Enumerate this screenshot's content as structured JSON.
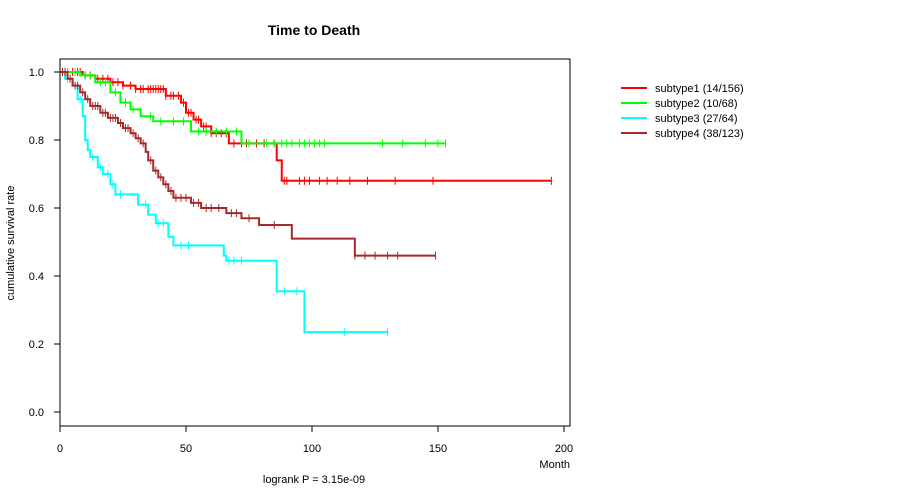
{
  "chart_data": {
    "type": "line",
    "subtype": "kaplan-meier",
    "title": "Time to Death",
    "xlabel": "Month",
    "ylabel": "cumulative survival rate",
    "footer": "logrank P = 3.15e-09",
    "xlim": [
      0,
      200
    ],
    "ylim": [
      0.0,
      1.0
    ],
    "xticks": [
      0,
      50,
      100,
      150,
      200
    ],
    "yticks": [
      0.0,
      0.2,
      0.4,
      0.6,
      0.8,
      1.0
    ],
    "ytick_labels": [
      "0.0",
      "0.2",
      "0.4",
      "0.6",
      "0.8",
      "1.0"
    ],
    "legend_position": "top-right, outside plot",
    "series": [
      {
        "name": "subtype1 (14/156)",
        "color": "#ff0000",
        "steps": [
          [
            0,
            1.0
          ],
          [
            9,
            0.99
          ],
          [
            14,
            0.98
          ],
          [
            20,
            0.97
          ],
          [
            25,
            0.96
          ],
          [
            30,
            0.95
          ],
          [
            42,
            0.93
          ],
          [
            48,
            0.91
          ],
          [
            50,
            0.88
          ],
          [
            53,
            0.86
          ],
          [
            56,
            0.84
          ],
          [
            60,
            0.82
          ],
          [
            67,
            0.79
          ],
          [
            75,
            0.79
          ],
          [
            86,
            0.74
          ],
          [
            88,
            0.68
          ],
          [
            195,
            0.68
          ]
        ],
        "censor": [
          1,
          2,
          3,
          5,
          7,
          8,
          10,
          12,
          15,
          17,
          19,
          21,
          23,
          25,
          28,
          30,
          32,
          33,
          35,
          36,
          37,
          38,
          39,
          40,
          41,
          42,
          44,
          45,
          47,
          49,
          51,
          52,
          54,
          55,
          57,
          58,
          60,
          62,
          64,
          66,
          69,
          72,
          74,
          78,
          81,
          85,
          89,
          90,
          95,
          97,
          99,
          103,
          106,
          110,
          115,
          122,
          133,
          148,
          195
        ]
      },
      {
        "name": "subtype2 (10/68)",
        "color": "#00ff00",
        "steps": [
          [
            0,
            1.0
          ],
          [
            8,
            0.99
          ],
          [
            14,
            0.97
          ],
          [
            20,
            0.94
          ],
          [
            24,
            0.91
          ],
          [
            28,
            0.89
          ],
          [
            32,
            0.87
          ],
          [
            37,
            0.855
          ],
          [
            52,
            0.825
          ],
          [
            72,
            0.79
          ],
          [
            153,
            0.79
          ]
        ],
        "censor": [
          3,
          6,
          10,
          12,
          16,
          18,
          22,
          26,
          29,
          36,
          40,
          45,
          49,
          55,
          58,
          62,
          66,
          70,
          75,
          82,
          85,
          88,
          90,
          92,
          95,
          97,
          99,
          101,
          103,
          105,
          128,
          136,
          145,
          150,
          153
        ]
      },
      {
        "name": "subtype3 (27/64)",
        "color": "#00ffff",
        "steps": [
          [
            0,
            1.0
          ],
          [
            2,
            0.98
          ],
          [
            5,
            0.96
          ],
          [
            7,
            0.92
          ],
          [
            9,
            0.87
          ],
          [
            10,
            0.8
          ],
          [
            11,
            0.77
          ],
          [
            12,
            0.75
          ],
          [
            15,
            0.72
          ],
          [
            17,
            0.7
          ],
          [
            20,
            0.67
          ],
          [
            22,
            0.64
          ],
          [
            31,
            0.61
          ],
          [
            35,
            0.58
          ],
          [
            38,
            0.555
          ],
          [
            43,
            0.515
          ],
          [
            45,
            0.49
          ],
          [
            65,
            0.46
          ],
          [
            66,
            0.445
          ],
          [
            86,
            0.355
          ],
          [
            97,
            0.235
          ],
          [
            130,
            0.235
          ]
        ],
        "censor": [
          1,
          3,
          8,
          13,
          16,
          19,
          21,
          24,
          34,
          39,
          41,
          48,
          51,
          67,
          69,
          72,
          89,
          94,
          113,
          130
        ]
      },
      {
        "name": "subtype4 (38/123)",
        "color": "#a52a2a",
        "steps": [
          [
            0,
            1.0
          ],
          [
            3,
            0.98
          ],
          [
            5,
            0.96
          ],
          [
            8,
            0.94
          ],
          [
            10,
            0.92
          ],
          [
            12,
            0.9
          ],
          [
            16,
            0.88
          ],
          [
            19,
            0.865
          ],
          [
            23,
            0.85
          ],
          [
            25,
            0.835
          ],
          [
            28,
            0.82
          ],
          [
            30,
            0.805
          ],
          [
            32,
            0.79
          ],
          [
            34,
            0.765
          ],
          [
            35,
            0.74
          ],
          [
            37,
            0.71
          ],
          [
            39,
            0.69
          ],
          [
            41,
            0.67
          ],
          [
            43,
            0.65
          ],
          [
            45,
            0.63
          ],
          [
            52,
            0.615
          ],
          [
            56,
            0.6
          ],
          [
            66,
            0.585
          ],
          [
            72,
            0.57
          ],
          [
            79,
            0.55
          ],
          [
            92,
            0.51
          ],
          [
            117,
            0.46
          ],
          [
            149,
            0.46
          ]
        ],
        "censor": [
          1,
          2,
          4,
          6,
          7,
          9,
          11,
          13,
          14,
          15,
          17,
          18,
          20,
          21,
          22,
          24,
          26,
          27,
          29,
          31,
          33,
          36,
          38,
          40,
          42,
          44,
          46,
          48,
          50,
          53,
          55,
          58,
          60,
          63,
          68,
          70,
          75,
          85,
          117,
          121,
          125,
          130,
          134,
          149
        ]
      }
    ]
  }
}
